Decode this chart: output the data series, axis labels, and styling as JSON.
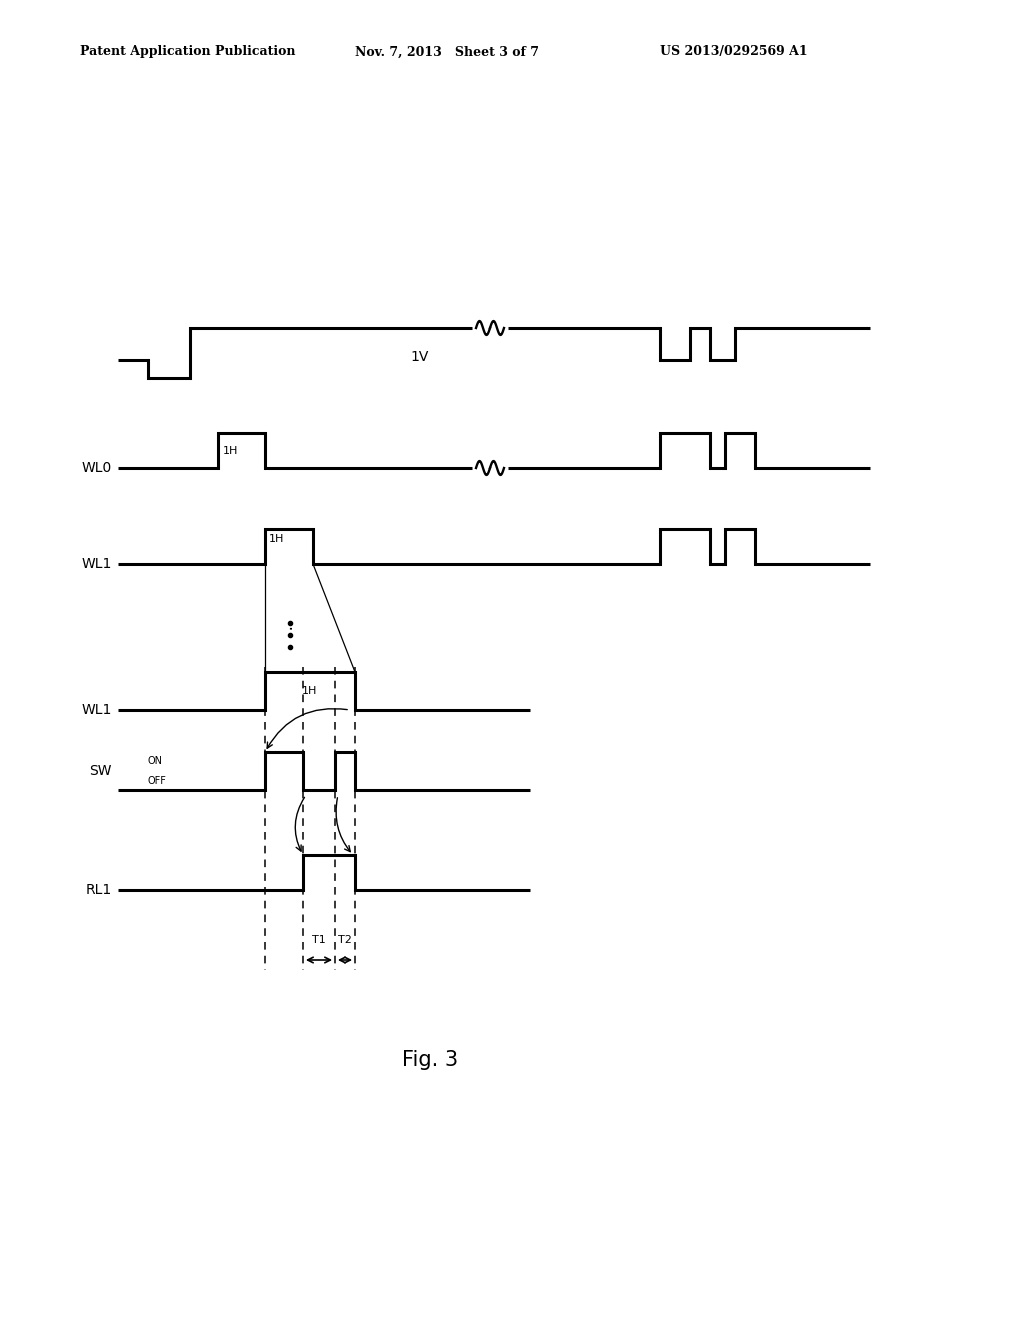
{
  "header_left": "Patent Application Publication",
  "header_mid": "Nov. 7, 2013   Sheet 3 of 7",
  "header_right": "US 2013/0292569 A1",
  "fig_label": "Fig. 3",
  "background_color": "#ffffff",
  "line_color": "#000000",
  "line_width": 2.2
}
